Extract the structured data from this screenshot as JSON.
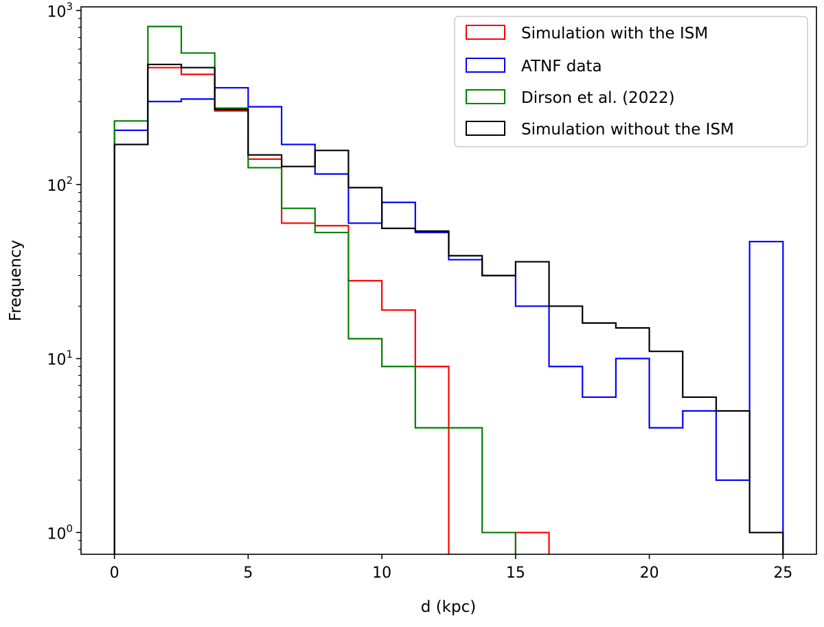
{
  "chart_data": {
    "type": "histogram",
    "title": "",
    "xlabel": "d (kpc)",
    "ylabel": "Frequency",
    "xlim": [
      -1.25,
      26.25
    ],
    "ylim": [
      0.75,
      1050
    ],
    "yscale": "log",
    "bin_edges": [
      0,
      1.25,
      2.5,
      3.75,
      5,
      6.25,
      7.5,
      8.75,
      10,
      11.25,
      12.5,
      13.75,
      15,
      16.25,
      17.5,
      18.75,
      20,
      21.25,
      22.5,
      23.75,
      25
    ],
    "x_ticks": [
      0,
      5,
      10,
      15,
      20,
      25
    ],
    "x_tick_labels": [
      "0",
      "5",
      "10",
      "15",
      "20",
      "25"
    ],
    "y_ticks": [
      1,
      10,
      100,
      1000
    ],
    "y_tick_bases": [
      "10",
      "10",
      "10",
      "10"
    ],
    "y_tick_exponents": [
      "0",
      "1",
      "2",
      "3"
    ],
    "legend_position": "top-right",
    "series": [
      {
        "name": "Simulation with the ISM",
        "color": "#ff0000",
        "values": [
          170,
          470,
          430,
          265,
          140,
          60,
          58,
          28,
          19,
          9,
          0,
          0,
          1,
          0,
          0,
          0,
          0,
          0,
          0,
          0
        ]
      },
      {
        "name": "ATNF data",
        "color": "#0000ff",
        "values": [
          205,
          300,
          310,
          360,
          280,
          170,
          115,
          60,
          79,
          53,
          37,
          30,
          20,
          9,
          6,
          10,
          4,
          5,
          2,
          47
        ]
      },
      {
        "name": "Dirson et al. (2022)",
        "color": "#008000",
        "values": [
          232,
          810,
          570,
          275,
          125,
          73,
          53,
          13,
          9,
          4,
          4,
          1,
          0,
          0,
          0,
          0,
          0,
          0,
          0,
          0
        ]
      },
      {
        "name": "Simulation without the ISM",
        "color": "#000000",
        "values": [
          170,
          490,
          470,
          270,
          148,
          127,
          157,
          96,
          56,
          54,
          39,
          30,
          36,
          20,
          16,
          15,
          11,
          6,
          5,
          1
        ]
      }
    ]
  }
}
